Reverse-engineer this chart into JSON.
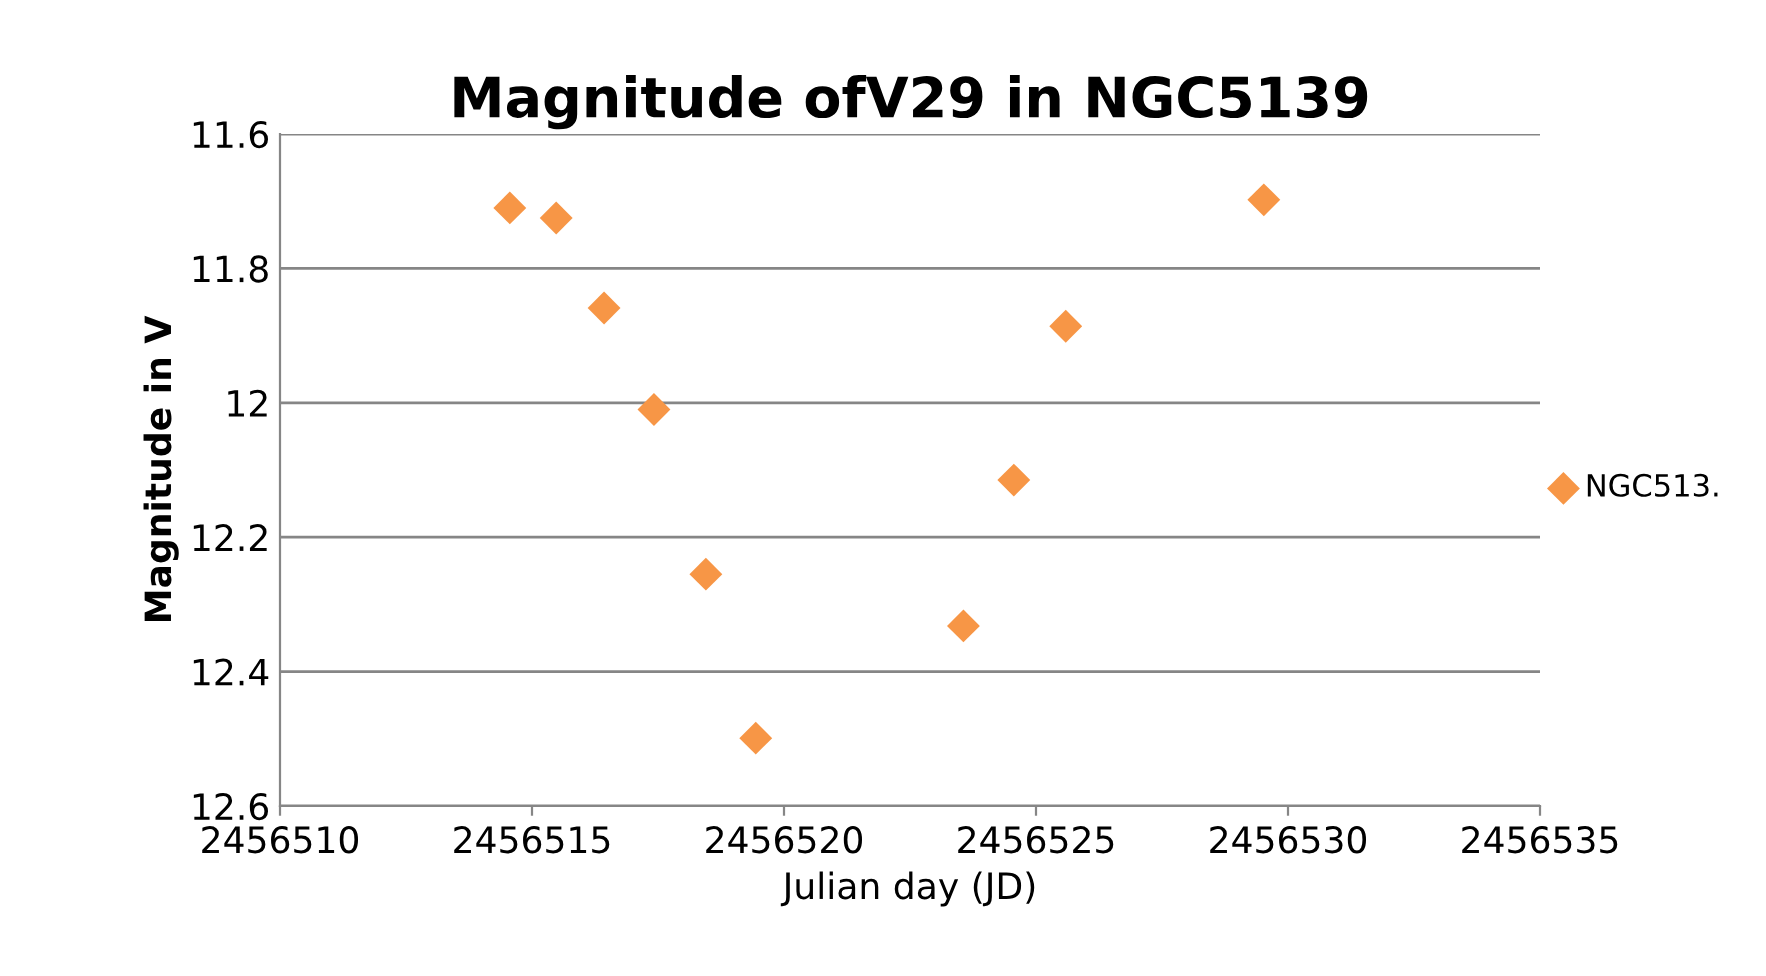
{
  "chart_data": {
    "type": "scatter",
    "title": "Magnitude ofV29 in NGC5139",
    "xlabel": "Julian day (JD)",
    "ylabel": "Magnitude in V",
    "x": [
      2456514.56,
      2456515.48,
      2456516.43,
      2456517.42,
      2456518.45,
      2456519.44,
      2456523.56,
      2456524.56,
      2456525.59,
      2456529.52
    ],
    "series": [
      {
        "name": "NGC513.",
        "color": "#f79646",
        "values": [
          11.71,
          11.725,
          11.859,
          12.01,
          12.255,
          12.499,
          12.332,
          12.115,
          11.886,
          11.698
        ]
      }
    ],
    "xlim": [
      2456510,
      2456535
    ],
    "xticks": [
      2456510,
      2456515,
      2456520,
      2456525,
      2456530,
      2456535
    ],
    "ylim": [
      12.6,
      11.6
    ],
    "yticks": [
      11.6,
      11.8,
      12,
      12.2,
      12.4,
      12.6
    ],
    "grid": "y",
    "legend": "right",
    "marker": "diamond"
  }
}
